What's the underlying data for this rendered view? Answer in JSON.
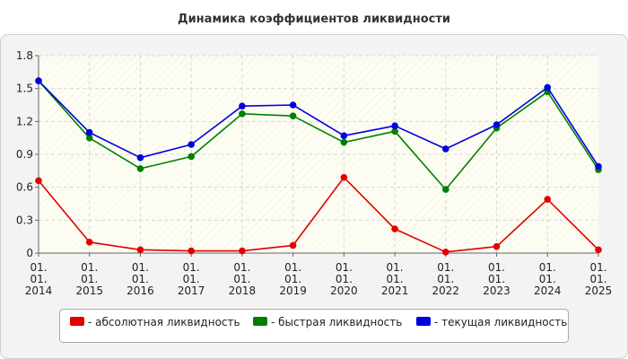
{
  "chart_data": {
    "type": "line",
    "title": "Динамика коэффициентов ликвидности",
    "categories": [
      "01.\n01.\n2014",
      "01.\n01.\n2015",
      "01.\n01.\n2016",
      "01.\n01.\n2017",
      "01.\n01.\n2018",
      "01.\n01.\n2019",
      "01.\n01.\n2020",
      "01.\n01.\n2021",
      "01.\n01.\n2022",
      "01.\n01.\n2023",
      "01.\n01.\n2024",
      "01.\n01.\n2025"
    ],
    "ylim": [
      0,
      1.8
    ],
    "yticks": [
      "0",
      "0.3",
      "0.6",
      "0.9",
      "1.2",
      "1.5",
      "1.8"
    ],
    "grid": true,
    "legend_position": "bottom",
    "series": [
      {
        "name": "- абсолютная ликвидность",
        "color": "#e00000",
        "values": [
          0.66,
          0.1,
          0.03,
          0.02,
          0.02,
          0.07,
          0.69,
          0.22,
          0.01,
          0.06,
          0.49,
          0.03
        ]
      },
      {
        "name": "- быстрая ликвидность",
        "color": "#008000",
        "values": [
          1.57,
          1.05,
          0.77,
          0.88,
          1.27,
          1.25,
          1.01,
          1.11,
          0.58,
          1.14,
          1.47,
          0.76
        ]
      },
      {
        "name": "- текущая ликвидность",
        "color": "#0000e0",
        "values": [
          1.57,
          1.1,
          0.87,
          0.99,
          1.34,
          1.35,
          1.07,
          1.16,
          0.95,
          1.17,
          1.51,
          0.79
        ]
      }
    ]
  }
}
